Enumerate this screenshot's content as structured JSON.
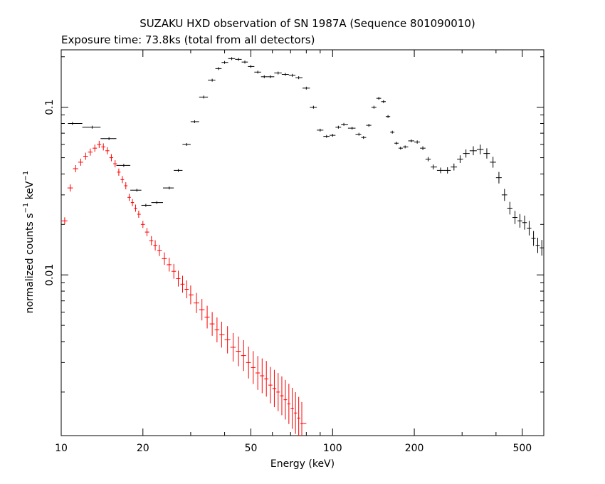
{
  "chart_data": {
    "type": "scatter",
    "title": "SUZAKU HXD observation of SN 1987A (Sequence 801090010)",
    "subtitle": "Exposure time: 73.8ks (total from all detectors)",
    "xlabel": "Energy (keV)",
    "ylabel_main": "normalized counts s",
    "ylabel_sup1": "−1",
    "ylabel_mid": " keV",
    "ylabel_sup2": "−1",
    "x_scale": "log",
    "y_scale": "log",
    "xlim": [
      10,
      600
    ],
    "ylim": [
      0.0011,
      0.22
    ],
    "x_ticks": [
      10,
      20,
      50,
      100,
      200,
      500
    ],
    "x_tick_labels": [
      "10",
      "20",
      "50",
      "100",
      "200",
      "500"
    ],
    "y_ticks": [
      0.01,
      0.1
    ],
    "y_tick_labels": [
      "0.01",
      "0.1"
    ],
    "grid": false,
    "series": [
      {
        "color": "#000000",
        "points": [
          [
            11.0,
            0.08
          ],
          [
            13.0,
            0.076
          ],
          [
            15.0,
            0.065
          ],
          [
            17.0,
            0.045
          ],
          [
            19.0,
            0.032
          ],
          [
            20.5,
            0.026
          ],
          [
            22.5,
            0.027
          ],
          [
            25.0,
            0.033
          ],
          [
            27.0,
            0.042
          ],
          [
            29.0,
            0.06
          ],
          [
            31.0,
            0.082
          ],
          [
            33.5,
            0.115
          ],
          [
            36.0,
            0.145
          ],
          [
            38.0,
            0.17
          ],
          [
            40.0,
            0.185
          ],
          [
            42.5,
            0.195
          ],
          [
            45.0,
            0.193
          ],
          [
            47.5,
            0.186
          ],
          [
            50.0,
            0.175
          ],
          [
            53.0,
            0.162
          ],
          [
            56.0,
            0.152
          ],
          [
            59.0,
            0.152
          ],
          [
            63.0,
            0.16
          ],
          [
            67.0,
            0.157
          ],
          [
            71.0,
            0.155
          ],
          [
            75.0,
            0.15
          ],
          [
            80.0,
            0.13
          ],
          [
            85.0,
            0.1
          ],
          [
            90.0,
            0.073
          ],
          [
            95.0,
            0.067
          ],
          [
            100.0,
            0.068
          ],
          [
            105.0,
            0.076
          ],
          [
            110.0,
            0.079
          ],
          [
            118.0,
            0.075
          ],
          [
            125.0,
            0.069
          ],
          [
            130.0,
            0.066
          ],
          [
            136.0,
            0.078
          ],
          [
            142.0,
            0.1
          ],
          [
            148.0,
            0.113
          ],
          [
            154.0,
            0.108
          ],
          [
            160.0,
            0.088
          ],
          [
            166.0,
            0.071
          ],
          [
            172.0,
            0.061
          ],
          [
            178.0,
            0.057
          ],
          [
            185.0,
            0.058
          ],
          [
            195.0,
            0.063
          ],
          [
            205.0,
            0.062
          ],
          [
            215.0,
            0.057
          ],
          [
            225.0,
            0.049
          ],
          [
            235.0,
            0.044
          ],
          [
            250.0,
            0.042
          ],
          [
            265.0,
            0.042
          ],
          [
            280.0,
            0.044
          ],
          [
            295.0,
            0.049
          ],
          [
            310.0,
            0.053
          ],
          [
            330.0,
            0.055
          ],
          [
            350.0,
            0.056
          ],
          [
            370.0,
            0.053
          ],
          [
            390.0,
            0.047
          ],
          [
            410.0,
            0.038
          ],
          [
            430.0,
            0.03
          ],
          [
            450.0,
            0.025
          ],
          [
            470.0,
            0.022
          ],
          [
            490.0,
            0.021
          ],
          [
            510.0,
            0.0205
          ],
          [
            530.0,
            0.019
          ],
          [
            550.0,
            0.0165
          ],
          [
            570.0,
            0.015
          ],
          [
            590.0,
            0.0145
          ]
        ]
      },
      {
        "color": "#ff0000",
        "points": [
          [
            10.3,
            0.021
          ],
          [
            10.8,
            0.033
          ],
          [
            11.3,
            0.043
          ],
          [
            11.8,
            0.047
          ],
          [
            12.3,
            0.051
          ],
          [
            12.8,
            0.054
          ],
          [
            13.3,
            0.057
          ],
          [
            13.8,
            0.06
          ],
          [
            14.3,
            0.058
          ],
          [
            14.8,
            0.055
          ],
          [
            15.3,
            0.05
          ],
          [
            15.8,
            0.046
          ],
          [
            16.3,
            0.041
          ],
          [
            16.8,
            0.037
          ],
          [
            17.3,
            0.034
          ],
          [
            17.8,
            0.029
          ],
          [
            18.3,
            0.027
          ],
          [
            18.8,
            0.025
          ],
          [
            19.3,
            0.023
          ],
          [
            20.0,
            0.02
          ],
          [
            20.7,
            0.018
          ],
          [
            21.5,
            0.016
          ],
          [
            22.2,
            0.015
          ],
          [
            23.0,
            0.014
          ],
          [
            24.0,
            0.0125
          ],
          [
            25.0,
            0.0115
          ],
          [
            26.0,
            0.0105
          ],
          [
            27.0,
            0.0095
          ],
          [
            28.0,
            0.0088
          ],
          [
            29.0,
            0.0082
          ],
          [
            30.0,
            0.0076
          ],
          [
            31.5,
            0.0068
          ],
          [
            33.0,
            0.0062
          ],
          [
            34.5,
            0.0056
          ],
          [
            36.0,
            0.0051
          ],
          [
            37.5,
            0.0047
          ],
          [
            39.0,
            0.0044
          ],
          [
            41.0,
            0.0041
          ],
          [
            43.0,
            0.0037
          ],
          [
            45.0,
            0.0035
          ],
          [
            47.0,
            0.0033
          ],
          [
            49.0,
            0.003
          ],
          [
            51.0,
            0.0028
          ],
          [
            53.0,
            0.0026
          ],
          [
            55.0,
            0.0025
          ],
          [
            57.0,
            0.0024
          ],
          [
            59.0,
            0.0022
          ],
          [
            61.0,
            0.0021
          ],
          [
            63.0,
            0.002
          ],
          [
            65.0,
            0.0019
          ],
          [
            67.0,
            0.0018
          ],
          [
            69.0,
            0.0017
          ],
          [
            71.0,
            0.0016
          ],
          [
            73.0,
            0.0015
          ],
          [
            75.0,
            0.0014
          ],
          [
            77.0,
            0.0013
          ]
        ]
      }
    ]
  }
}
